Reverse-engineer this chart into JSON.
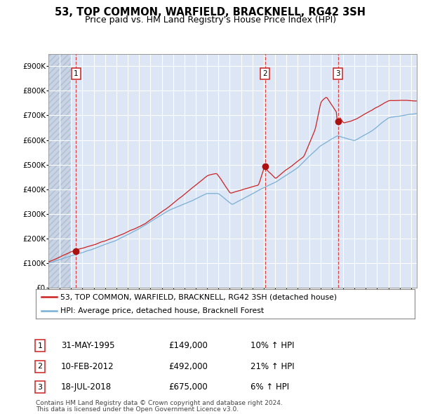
{
  "title": "53, TOP COMMON, WARFIELD, BRACKNELL, RG42 3SH",
  "subtitle": "Price paid vs. HM Land Registry's House Price Index (HPI)",
  "xlim": [
    1993.0,
    2025.5
  ],
  "ylim": [
    0,
    950000
  ],
  "yticks": [
    0,
    100000,
    200000,
    300000,
    400000,
    500000,
    600000,
    700000,
    800000,
    900000
  ],
  "ytick_labels": [
    "£0",
    "£100K",
    "£200K",
    "£300K",
    "£400K",
    "£500K",
    "£600K",
    "£700K",
    "£800K",
    "£900K"
  ],
  "sale_dates": [
    1995.42,
    2012.11,
    2018.54
  ],
  "sale_prices": [
    149000,
    492000,
    675000
  ],
  "sale_labels": [
    "1",
    "2",
    "3"
  ],
  "sale_date_strs": [
    "31-MAY-1995",
    "10-FEB-2012",
    "18-JUL-2018"
  ],
  "sale_price_strs": [
    "£149,000",
    "£492,000",
    "£675,000"
  ],
  "sale_hpi_strs": [
    "10% ↑ HPI",
    "21% ↑ HPI",
    "6% ↑ HPI"
  ],
  "hpi_line_color": "#7aafd4",
  "price_line_color": "#cc2222",
  "dot_color": "#aa1111",
  "vline_color": "#dd4444",
  "plot_bg_color": "#dce6f5",
  "hatch_region_end": 1995.0,
  "grid_color": "#ffffff",
  "legend_line1": "53, TOP COMMON, WARFIELD, BRACKNELL, RG42 3SH (detached house)",
  "legend_line2": "HPI: Average price, detached house, Bracknell Forest",
  "footer1": "Contains HM Land Registry data © Crown copyright and database right 2024.",
  "footer2": "This data is licensed under the Open Government Licence v3.0.",
  "title_fontsize": 10.5,
  "subtitle_fontsize": 9,
  "tick_fontsize": 7.5,
  "legend_fontsize": 7.8,
  "table_fontsize": 8.5,
  "footer_fontsize": 6.5
}
